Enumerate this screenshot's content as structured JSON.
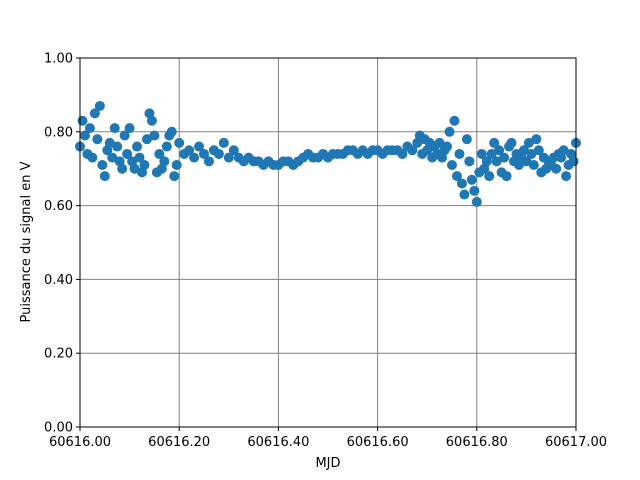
{
  "chart_data": {
    "type": "scatter",
    "x_label": "MJD",
    "y_label": "Puissance du signal en V",
    "color": "#1f77b4",
    "grid": true,
    "xlim": [
      60616,
      60617
    ],
    "xticks": [
      {
        "value": 60616,
        "label": "60616.00"
      },
      {
        "value": 60616.2,
        "label": "60616.20"
      },
      {
        "value": 60616.4,
        "label": "60616.40"
      },
      {
        "value": 60616.6,
        "label": "60616.60"
      },
      {
        "value": 60616.8,
        "label": "60616.80"
      },
      {
        "value": 60617,
        "label": "60617.00"
      }
    ],
    "ylim": [
      0,
      1
    ],
    "yticks": [
      {
        "value": 0,
        "label": "0.00"
      },
      {
        "value": 0.2,
        "label": "0.20"
      },
      {
        "value": 0.4,
        "label": "0.40"
      },
      {
        "value": 0.6,
        "label": "0.60"
      },
      {
        "value": 0.8,
        "label": "0.80"
      },
      {
        "value": 1,
        "label": "1.00"
      }
    ],
    "x": [
      60616.0,
      60616.005,
      60616.01,
      60616.015,
      60616.02,
      60616.025,
      60616.03,
      60616.035,
      60616.04,
      60616.045,
      60616.05,
      60616.055,
      60616.06,
      60616.065,
      60616.07,
      60616.075,
      60616.08,
      60616.085,
      60616.09,
      60616.095,
      60616.1,
      60616.105,
      60616.11,
      60616.115,
      60616.12,
      60616.125,
      60616.13,
      60616.135,
      60616.14,
      60616.145,
      60616.15,
      60616.155,
      60616.16,
      60616.165,
      60616.17,
      60616.175,
      60616.18,
      60616.185,
      60616.19,
      60616.195,
      60616.2,
      60616.21,
      60616.22,
      60616.23,
      60616.24,
      60616.25,
      60616.26,
      60616.27,
      60616.28,
      60616.29,
      60616.3,
      60616.31,
      60616.32,
      60616.33,
      60616.34,
      60616.35,
      60616.36,
      60616.37,
      60616.38,
      60616.39,
      60616.4,
      60616.41,
      60616.42,
      60616.43,
      60616.44,
      60616.45,
      60616.46,
      60616.47,
      60616.48,
      60616.49,
      60616.5,
      60616.51,
      60616.52,
      60616.53,
      60616.54,
      60616.55,
      60616.56,
      60616.57,
      60616.58,
      60616.59,
      60616.6,
      60616.61,
      60616.62,
      60616.63,
      60616.64,
      60616.65,
      60616.66,
      60616.67,
      60616.68,
      60616.685,
      60616.69,
      60616.695,
      60616.7,
      60616.705,
      60616.71,
      60616.715,
      60616.72,
      60616.725,
      60616.73,
      60616.735,
      60616.74,
      60616.745,
      60616.75,
      60616.755,
      60616.76,
      60616.765,
      60616.77,
      60616.775,
      60616.78,
      60616.785,
      60616.79,
      60616.795,
      60616.8,
      60616.805,
      60616.81,
      60616.815,
      60616.82,
      60616.825,
      60616.83,
      60616.835,
      60616.84,
      60616.845,
      60616.85,
      60616.855,
      60616.86,
      60616.865,
      60616.87,
      60616.875,
      60616.88,
      60616.885,
      60616.89,
      60616.895,
      60616.9,
      60616.905,
      60616.91,
      60616.915,
      60616.92,
      60616.925,
      60616.93,
      60616.935,
      60616.94,
      60616.945,
      60616.95,
      60616.955,
      60616.96,
      60616.965,
      60616.97,
      60616.975,
      60616.98,
      60616.985,
      60616.99,
      60616.995,
      60617.0
    ],
    "values": [
      0.76,
      0.83,
      0.79,
      0.74,
      0.81,
      0.73,
      0.85,
      0.78,
      0.87,
      0.71,
      0.68,
      0.75,
      0.77,
      0.73,
      0.81,
      0.76,
      0.72,
      0.7,
      0.79,
      0.74,
      0.81,
      0.72,
      0.7,
      0.76,
      0.73,
      0.69,
      0.71,
      0.78,
      0.85,
      0.83,
      0.79,
      0.69,
      0.74,
      0.7,
      0.72,
      0.76,
      0.79,
      0.8,
      0.68,
      0.71,
      0.77,
      0.74,
      0.75,
      0.73,
      0.76,
      0.74,
      0.72,
      0.75,
      0.74,
      0.77,
      0.73,
      0.75,
      0.73,
      0.72,
      0.73,
      0.72,
      0.72,
      0.71,
      0.72,
      0.71,
      0.71,
      0.72,
      0.72,
      0.71,
      0.72,
      0.73,
      0.74,
      0.73,
      0.73,
      0.74,
      0.73,
      0.74,
      0.74,
      0.74,
      0.75,
      0.75,
      0.74,
      0.75,
      0.74,
      0.75,
      0.75,
      0.74,
      0.75,
      0.75,
      0.75,
      0.74,
      0.76,
      0.75,
      0.77,
      0.79,
      0.74,
      0.78,
      0.75,
      0.77,
      0.73,
      0.76,
      0.74,
      0.77,
      0.73,
      0.75,
      0.76,
      0.8,
      0.71,
      0.83,
      0.68,
      0.74,
      0.66,
      0.63,
      0.78,
      0.72,
      0.67,
      0.64,
      0.61,
      0.69,
      0.74,
      0.7,
      0.72,
      0.68,
      0.74,
      0.77,
      0.72,
      0.75,
      0.69,
      0.73,
      0.68,
      0.76,
      0.77,
      0.72,
      0.74,
      0.71,
      0.73,
      0.75,
      0.72,
      0.77,
      0.74,
      0.71,
      0.78,
      0.75,
      0.69,
      0.73,
      0.7,
      0.72,
      0.71,
      0.73,
      0.7,
      0.74,
      0.73,
      0.75,
      0.68,
      0.71,
      0.74,
      0.72,
      0.77
    ]
  }
}
